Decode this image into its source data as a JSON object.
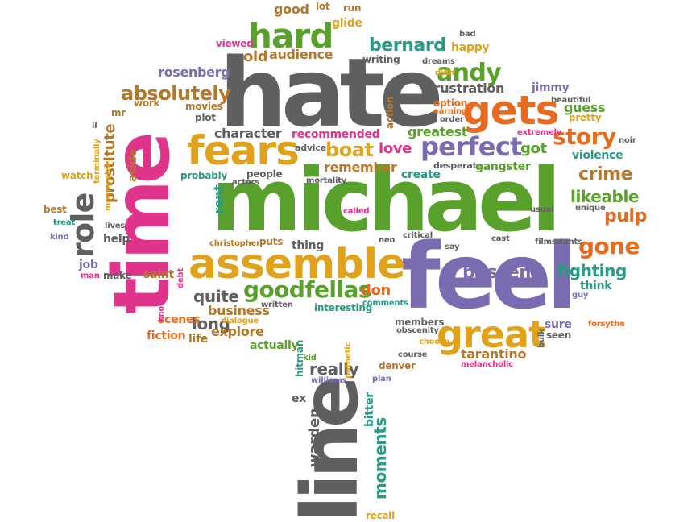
{
  "palette": {
    "gray": "#5f5f5f",
    "green": "#5aa02c",
    "purple": "#7b6bb0",
    "orange": "#e86a1e",
    "gold": "#e0a21b",
    "pink": "#e0338c",
    "teal": "#2a9a84",
    "brown": "#b3782a"
  },
  "words": [
    "hate",
    "michael",
    "feel",
    "time",
    "line",
    "gets",
    "fears",
    "assemble",
    "great",
    "perfect",
    "goodfellas",
    "hard",
    "andy",
    "story",
    "gone",
    "bernard",
    "boat",
    "role",
    "buscemi",
    "pulp",
    "crime",
    "likeable",
    "fighting",
    "absolutely",
    "quite",
    "long",
    "really",
    "moments",
    "warden",
    "tarantino",
    "frustration",
    "rosenberg",
    "old",
    "audience",
    "glide",
    "good",
    "lot",
    "run",
    "bad",
    "happy",
    "writing",
    "dreams",
    "didn",
    "jimmy",
    "beautiful",
    "pretty",
    "guess",
    "option",
    "earning",
    "order",
    "extremely",
    "greatest",
    "got",
    "violence",
    "noir",
    "action",
    "recommended",
    "advice",
    "remember",
    "desperate",
    "gangster",
    "love",
    "create",
    "character",
    "plot",
    "work",
    "movies",
    "viewed",
    "mr",
    "il",
    "prostitute",
    "watch",
    "memorable",
    "aside",
    "terminally",
    "best",
    "treat",
    "kind",
    "lives",
    "help",
    "job",
    "man",
    "make",
    "saint",
    "debt",
    "rent",
    "probably",
    "people",
    "actors",
    "mortality",
    "called",
    "unique",
    "usual",
    "films",
    "wants",
    "think",
    "guy",
    "sure",
    "seen",
    "bulk",
    "forsythe",
    "melancholic",
    "denver",
    "course",
    "choose",
    "members",
    "obscenity",
    "comments",
    "interesting",
    "don",
    "business",
    "written",
    "dialogue",
    "explore",
    "scenes",
    "fiction",
    "life",
    "know",
    "actually",
    "hitman",
    "kid",
    "williams",
    "pathetic",
    "plan",
    "bitter",
    "ex",
    "recall",
    "christopher",
    "puts",
    "thing",
    "neo",
    "critical",
    "say",
    "cast"
  ]
}
